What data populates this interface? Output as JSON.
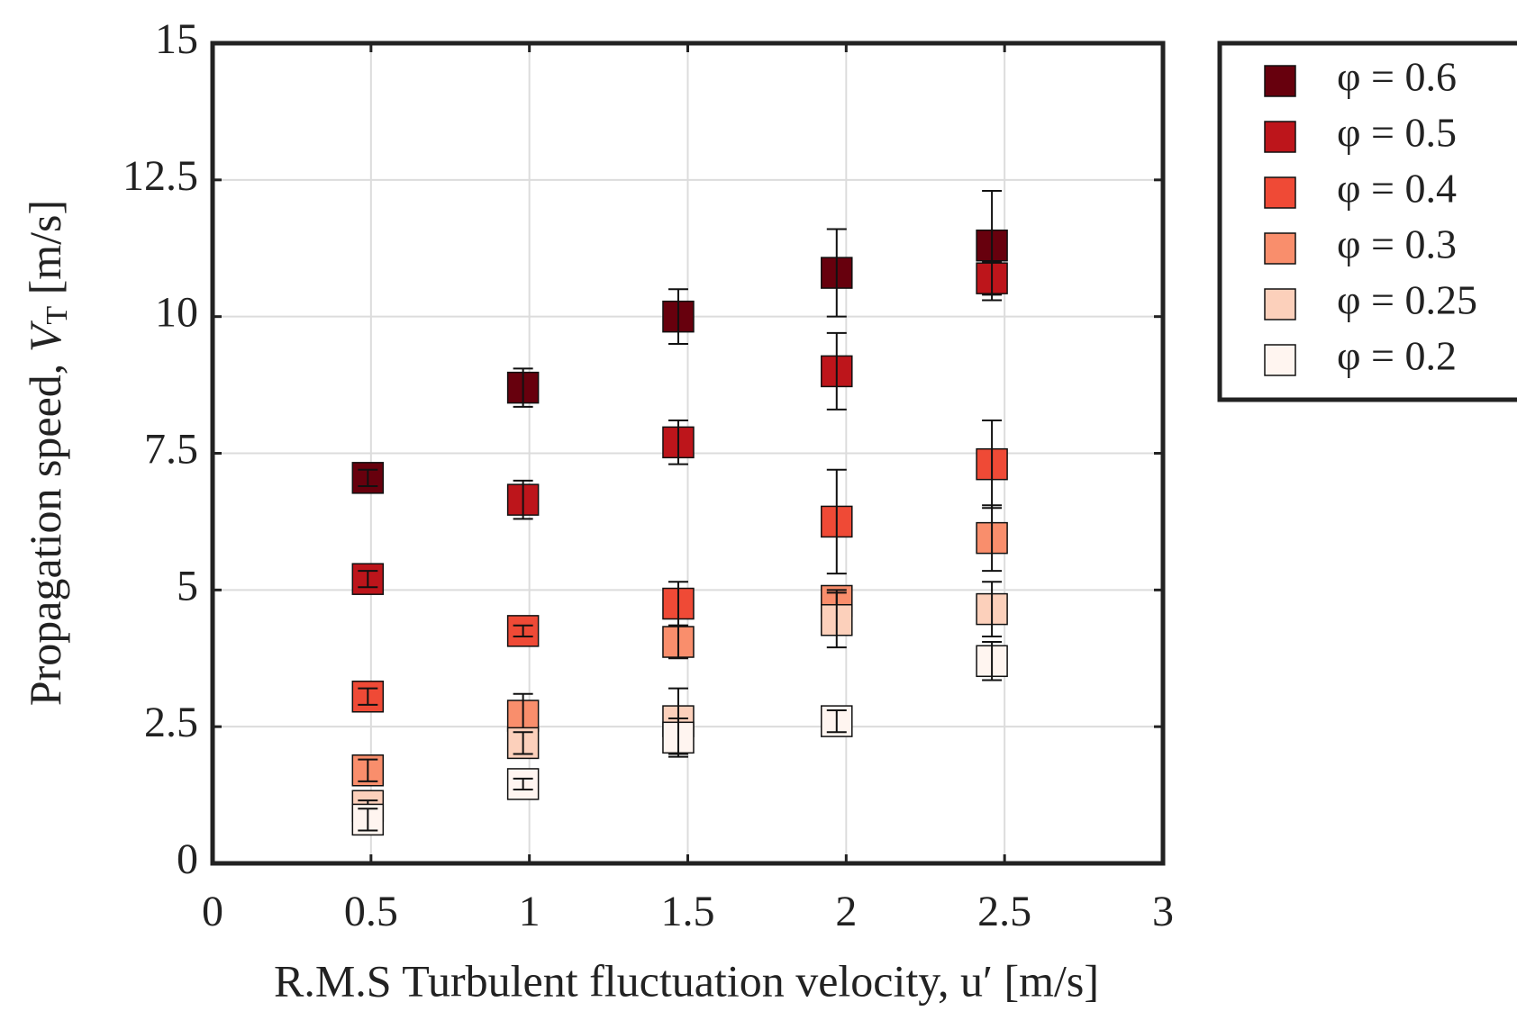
{
  "chart_data": {
    "type": "errorbar-scatter",
    "xlabel": "R.M.S Turbulent fluctuation velocity, u′ [m/s]",
    "ylabel": {
      "text": "Propagation speed, ",
      "var": "V",
      "sub": "T",
      "unit": " [m/s]"
    },
    "x": [
      0.49,
      0.98,
      1.47,
      1.97,
      2.46
    ],
    "xlim": [
      0,
      3
    ],
    "xticks": [
      0,
      0.5,
      1,
      1.5,
      2,
      2.5,
      3
    ],
    "ylim": [
      0,
      15
    ],
    "yticks": [
      0,
      2.5,
      5,
      7.5,
      10,
      12.5,
      15
    ],
    "grid": true,
    "legend": "outside-right-top",
    "series": [
      {
        "name": "φ = 0.6",
        "color": "#67000d",
        "values": [
          7.05,
          8.7,
          10.0,
          10.8,
          11.3
        ],
        "errors": [
          0.15,
          0.35,
          0.5,
          0.8,
          1.0
        ]
      },
      {
        "name": "φ = 0.5",
        "color": "#bd151b",
        "values": [
          5.2,
          6.65,
          7.7,
          9.0,
          10.7
        ],
        "errors": [
          0.15,
          0.35,
          0.4,
          0.7,
          0.3
        ]
      },
      {
        "name": "φ = 0.4",
        "color": "#ef4a36",
        "values": [
          3.05,
          4.25,
          4.75,
          6.25,
          7.3
        ],
        "errors": [
          0.15,
          0.1,
          0.4,
          0.95,
          0.8
        ]
      },
      {
        "name": "φ = 0.3",
        "color": "#f98e6c",
        "values": [
          1.7,
          2.7,
          4.05,
          4.8,
          5.95
        ],
        "errors": [
          0.2,
          0.4,
          0.3,
          0.2,
          0.6
        ]
      },
      {
        "name": "φ = 0.25",
        "color": "#fcd0bb",
        "values": [
          1.05,
          2.2,
          2.6,
          4.45,
          4.65
        ],
        "errors": [
          0.1,
          0.2,
          0.6,
          0.5,
          0.5
        ]
      },
      {
        "name": "φ = 0.2",
        "color": "#fff5f0",
        "values": [
          0.8,
          1.45,
          2.3,
          2.6,
          3.7
        ],
        "errors": [
          0.2,
          0.1,
          0.35,
          0.2,
          0.35
        ]
      }
    ]
  }
}
